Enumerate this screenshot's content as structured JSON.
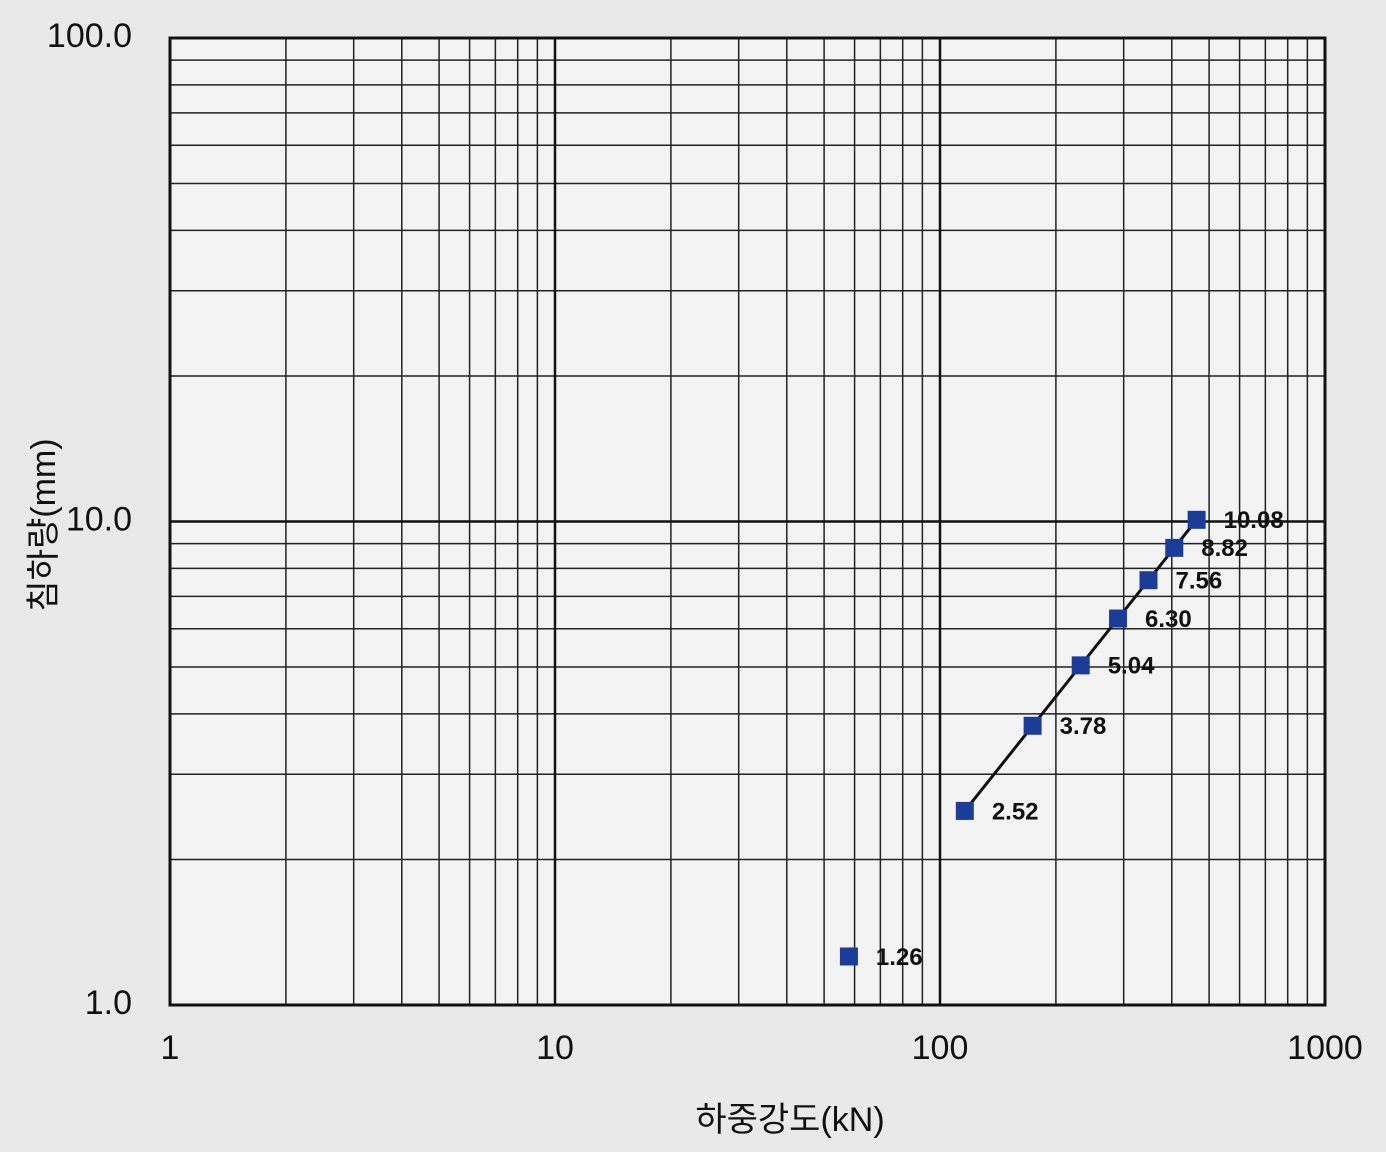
{
  "chart_data": {
    "type": "scatter",
    "x_label": "하중강도(kN)",
    "y_label": "침하량(mm)",
    "x": [
      58,
      116,
      174,
      232,
      290,
      348,
      406,
      464
    ],
    "values": [
      1.26,
      2.52,
      3.78,
      5.04,
      6.3,
      7.56,
      8.82,
      10.08
    ],
    "value_labels": [
      "1.26",
      "2.52",
      "3.78",
      "5.04",
      "6.30",
      "7.56",
      "8.82",
      "10.08"
    ],
    "line_values": [
      null,
      2.52,
      3.78,
      5.04,
      6.3,
      7.56,
      8.82,
      10.08
    ],
    "color": "#1b3d99",
    "line_color": "#111111",
    "xlim": [
      1,
      1000
    ],
    "ylim": [
      1,
      100
    ],
    "xticks": [
      1,
      10,
      100,
      1000
    ],
    "yticks": [
      {
        "value": 1,
        "label": "1.0"
      },
      {
        "value": 10,
        "label": "10.0"
      },
      {
        "value": 100,
        "label": "100.0"
      }
    ],
    "xscale": "log",
    "yscale": "log",
    "grid": true
  }
}
